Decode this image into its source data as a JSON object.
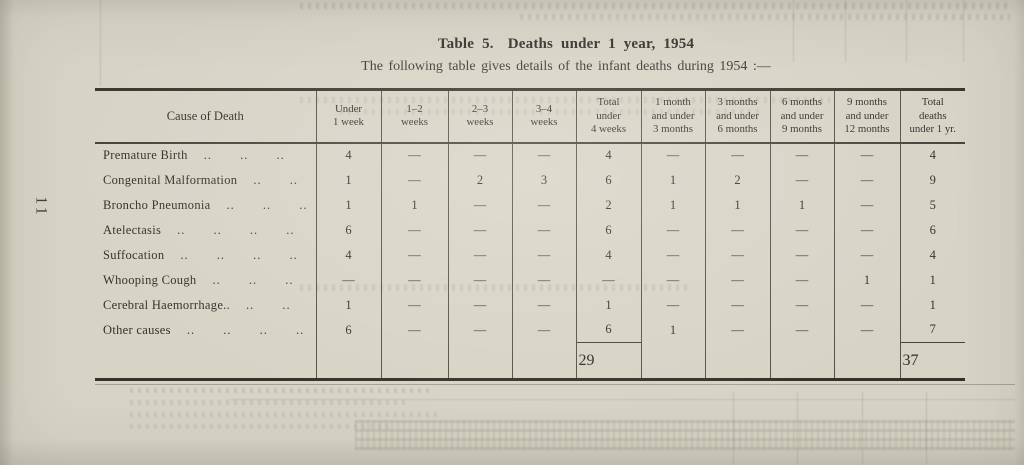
{
  "page": {
    "number": "11"
  },
  "title": {
    "label": "Table 5.",
    "text": "Deaths under 1 year, 1954"
  },
  "subtitle": "The following table gives details of the infant deaths during 1954 :—",
  "colors": {
    "paper": "#d7d3c5",
    "ink": "#2f2d28",
    "rule": "#35322b"
  },
  "table": {
    "columns": [
      "Cause of Death",
      "Under\n1 week",
      "1–2\nweeks",
      "2–3\nweeks",
      "3–4\nweeks",
      "Total\nunder\n4 weeks",
      "1 month\nand under\n3 months",
      "3 months\nand under\n6 months",
      "6 months\nand under\n9 months",
      "9 months\nand under\n12 months",
      "Total\ndeaths\nunder 1 yr."
    ],
    "rows": [
      {
        "cause": "Premature Birth",
        "dots": ".. .. ..",
        "values": [
          "4",
          "—",
          "—",
          "—",
          "4",
          "—",
          "—",
          "—",
          "—",
          "4"
        ]
      },
      {
        "cause": "Congenital Malformation",
        "dots": ".. ..",
        "values": [
          "1",
          "—",
          "2",
          "3",
          "6",
          "1",
          "2",
          "—",
          "—",
          "9"
        ]
      },
      {
        "cause": "Broncho Pneumonia",
        "dots": ".. .. ..",
        "values": [
          "1",
          "1",
          "—",
          "—",
          "2",
          "1",
          "1",
          "1",
          "—",
          "5"
        ]
      },
      {
        "cause": "Atelectasis",
        "dots": ".. .. .. ..",
        "values": [
          "6",
          "—",
          "—",
          "—",
          "6",
          "—",
          "—",
          "—",
          "—",
          "6"
        ]
      },
      {
        "cause": "Suffocation",
        "dots": ".. .. .. ..",
        "values": [
          "4",
          "—",
          "—",
          "—",
          "4",
          "—",
          "—",
          "—",
          "—",
          "4"
        ]
      },
      {
        "cause": "Whooping Cough",
        "dots": ".. .. ..",
        "values": [
          "—",
          "—",
          "—",
          "—",
          "—",
          "—",
          "—",
          "—",
          "1",
          "1"
        ]
      },
      {
        "cause": "Cerebral Haemorrhage..",
        "dots": ".. ..",
        "values": [
          "1",
          "—",
          "—",
          "—",
          "1",
          "—",
          "—",
          "—",
          "—",
          "1"
        ]
      },
      {
        "cause": "Other causes",
        "dots": ".. .. .. ..",
        "values": [
          "6",
          "—",
          "—",
          "—",
          "6",
          "1",
          "—",
          "—",
          "—",
          "7"
        ]
      }
    ],
    "totals": {
      "total_under_4_weeks": "29",
      "total_deaths_under_1_yr": "37"
    }
  }
}
